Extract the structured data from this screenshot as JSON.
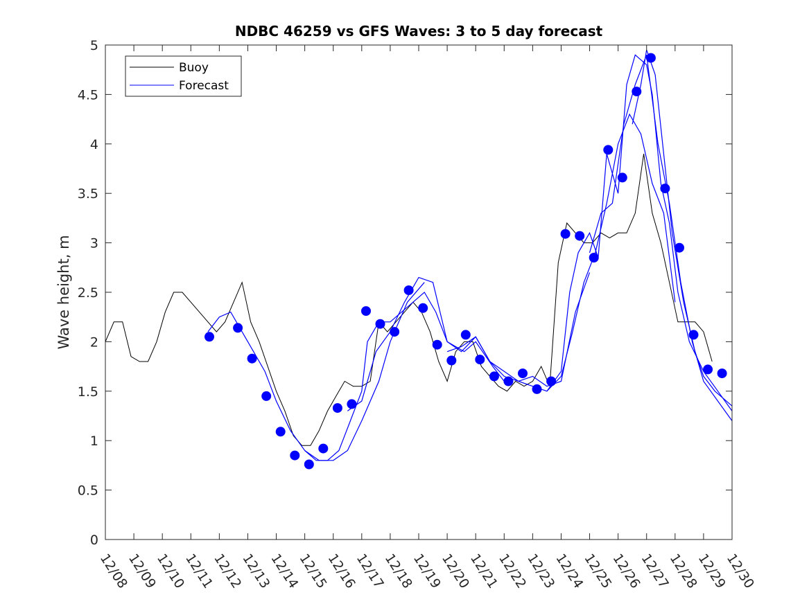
{
  "chart_data": {
    "type": "line",
    "title": "NDBC 46259 vs GFS Waves: 3 to 5 day forecast",
    "xlabel": "",
    "ylabel": "Wave height, m",
    "xlim": [
      0,
      22
    ],
    "ylim": [
      0,
      5
    ],
    "x_unit": "days since 12/08 00:00",
    "x_tick_labels": [
      "12/08",
      "12/09",
      "12/10",
      "12/11",
      "12/12",
      "12/13",
      "12/14",
      "12/15",
      "12/16",
      "12/17",
      "12/18",
      "12/19",
      "12/20",
      "12/21",
      "12/22",
      "12/23",
      "12/24",
      "12/25",
      "12/26",
      "12/27",
      "12/28",
      "12/29",
      "12/30"
    ],
    "y_ticks": [
      0,
      0.5,
      1,
      1.5,
      2,
      2.5,
      3,
      3.5,
      4,
      4.5,
      5
    ],
    "y_tick_labels": [
      "0",
      "0.5",
      "1",
      "1.5",
      "2",
      "2.5",
      "3",
      "3.5",
      "4",
      "4.5",
      "5"
    ],
    "legend": {
      "position": "top-left",
      "entries": [
        "Buoy",
        "Forecast"
      ]
    },
    "colors": {
      "buoy": "#000000",
      "forecast": "#0000ff",
      "axes": "#262626"
    },
    "buoy": {
      "name": "Buoy",
      "x": [
        0,
        0.3,
        0.6,
        0.9,
        1.2,
        1.5,
        1.8,
        2.1,
        2.4,
        2.7,
        3.0,
        3.3,
        3.6,
        3.9,
        4.2,
        4.5,
        4.8,
        5.1,
        5.4,
        5.7,
        6.0,
        6.3,
        6.6,
        6.9,
        7.2,
        7.5,
        7.8,
        8.1,
        8.4,
        8.7,
        9.0,
        9.3,
        9.6,
        9.9,
        10.2,
        10.5,
        10.8,
        11.1,
        11.4,
        11.7,
        12.0,
        12.3,
        12.6,
        12.9,
        13.2,
        13.5,
        13.8,
        14.1,
        14.4,
        14.7,
        15.0,
        15.3,
        15.6,
        15.9,
        16.2,
        16.5,
        16.8,
        17.1,
        17.4,
        17.7,
        18.0,
        18.3,
        18.6,
        18.9,
        19.2,
        19.5,
        19.8,
        20.1,
        20.4,
        20.7,
        21.0,
        21.3
      ],
      "y": [
        2.0,
        2.2,
        2.2,
        1.85,
        1.8,
        1.8,
        2.0,
        2.3,
        2.5,
        2.5,
        2.4,
        2.3,
        2.2,
        2.1,
        2.2,
        2.4,
        2.6,
        2.2,
        2.0,
        1.75,
        1.5,
        1.3,
        1.05,
        0.95,
        0.95,
        1.1,
        1.3,
        1.45,
        1.6,
        1.55,
        1.55,
        1.6,
        2.2,
        2.1,
        2.2,
        2.3,
        2.4,
        2.3,
        2.1,
        1.8,
        1.6,
        1.9,
        2.0,
        2.0,
        1.75,
        1.65,
        1.55,
        1.5,
        1.6,
        1.55,
        1.6,
        1.75,
        1.55,
        2.8,
        3.2,
        3.1,
        3.0,
        3.0,
        3.1,
        3.05,
        3.1,
        3.1,
        3.3,
        3.9,
        3.3,
        3.0,
        2.6,
        2.2,
        2.2,
        2.2,
        2.1,
        1.8
      ]
    },
    "forecast_runs": [
      {
        "name": "Forecast",
        "x": [
          3.6,
          4.0,
          4.4,
          5.0,
          5.6,
          6.0,
          6.5,
          7.0,
          7.5,
          8.0,
          8.5,
          9.0,
          9.6,
          10.0,
          10.6,
          11.2
        ],
        "y": [
          2.1,
          2.25,
          2.3,
          2.0,
          1.7,
          1.4,
          1.1,
          0.9,
          0.8,
          0.8,
          0.9,
          1.2,
          1.6,
          2.0,
          2.4,
          2.6
        ]
      },
      {
        "name": "Forecast",
        "x": [
          7.0,
          7.4,
          7.8,
          8.2,
          8.6,
          9.0,
          9.2,
          9.6,
          10.0,
          10.4,
          10.8,
          11.2,
          11.6,
          12.0,
          12.6,
          13.0,
          13.6,
          14.0
        ],
        "y": [
          0.9,
          0.8,
          0.8,
          0.9,
          1.2,
          1.5,
          2.0,
          2.2,
          2.2,
          2.3,
          2.4,
          2.5,
          2.3,
          2.0,
          1.9,
          2.0,
          1.75,
          1.6
        ]
      },
      {
        "name": "Forecast",
        "x": [
          8.5,
          9.0,
          9.5,
          10.0,
          10.5,
          11.0,
          11.5,
          12.0,
          12.5,
          13.0,
          13.5,
          14.0,
          14.5,
          15.0,
          15.5,
          16.0,
          16.5,
          17.0
        ],
        "y": [
          1.3,
          1.4,
          1.9,
          2.1,
          2.4,
          2.65,
          2.6,
          2.0,
          1.9,
          2.05,
          1.8,
          1.65,
          1.6,
          1.65,
          1.55,
          1.6,
          2.3,
          2.7
        ]
      },
      {
        "name": "Forecast",
        "x": [
          12.0,
          12.5,
          13.0,
          13.5,
          14.0,
          14.5,
          15.0,
          15.5,
          16.0,
          16.4,
          16.8,
          17.2,
          17.6,
          18.0,
          18.4,
          18.8,
          19.2,
          19.6,
          20.0
        ],
        "y": [
          1.9,
          1.95,
          2.05,
          1.8,
          1.7,
          1.6,
          1.55,
          1.5,
          1.65,
          2.1,
          2.6,
          2.9,
          3.4,
          4.0,
          4.3,
          4.1,
          3.6,
          3.3,
          2.4
        ]
      },
      {
        "name": "Forecast",
        "x": [
          15.5,
          16.0,
          16.3,
          16.6,
          17.0,
          17.3,
          17.6,
          18.0,
          18.3,
          18.6,
          19.0,
          19.2,
          19.5,
          19.8,
          20.1,
          20.5,
          21.0,
          21.5,
          22.0
        ],
        "y": [
          1.5,
          1.7,
          2.5,
          2.9,
          3.1,
          2.85,
          3.9,
          3.5,
          4.6,
          4.9,
          4.8,
          4.5,
          3.6,
          3.2,
          2.5,
          2.0,
          1.7,
          1.5,
          1.3
        ]
      },
      {
        "name": "Forecast",
        "x": [
          17.0,
          17.4,
          17.8,
          18.2,
          18.6,
          19.0,
          19.4,
          19.8,
          20.2,
          20.6,
          21.0,
          21.5,
          22.0
        ],
        "y": [
          2.9,
          3.3,
          3.4,
          4.2,
          4.6,
          4.9,
          4.0,
          3.4,
          2.6,
          2.0,
          1.6,
          1.4,
          1.2
        ]
      },
      {
        "name": "Forecast",
        "x": [
          18.5,
          18.8,
          19.0,
          19.3,
          19.6,
          19.9,
          20.3,
          20.7,
          21.0,
          21.4,
          22.0
        ],
        "y": [
          4.2,
          4.6,
          4.95,
          4.7,
          3.9,
          3.1,
          2.4,
          1.9,
          1.65,
          1.5,
          1.35
        ]
      }
    ],
    "forecast_markers": {
      "x": [
        3.65,
        4.65,
        5.15,
        5.65,
        6.15,
        6.65,
        7.15,
        7.65,
        8.15,
        8.65,
        9.15,
        9.65,
        10.15,
        10.65,
        11.15,
        11.65,
        12.15,
        12.65,
        13.15,
        13.65,
        14.15,
        14.65,
        15.15,
        15.65,
        16.15,
        16.65,
        17.15,
        17.65,
        18.15,
        18.65,
        19.15,
        19.65,
        20.15,
        20.65,
        21.15,
        21.65
      ],
      "y": [
        2.05,
        2.14,
        1.83,
        1.45,
        1.09,
        0.85,
        0.76,
        0.92,
        1.33,
        1.37,
        2.31,
        2.18,
        2.1,
        2.52,
        2.34,
        1.97,
        1.81,
        2.07,
        1.82,
        1.65,
        1.6,
        1.68,
        1.52,
        1.6,
        3.09,
        3.07,
        2.85,
        3.94,
        3.66,
        4.53,
        4.87,
        3.55,
        2.95,
        2.07,
        1.72,
        1.68
      ]
    }
  }
}
